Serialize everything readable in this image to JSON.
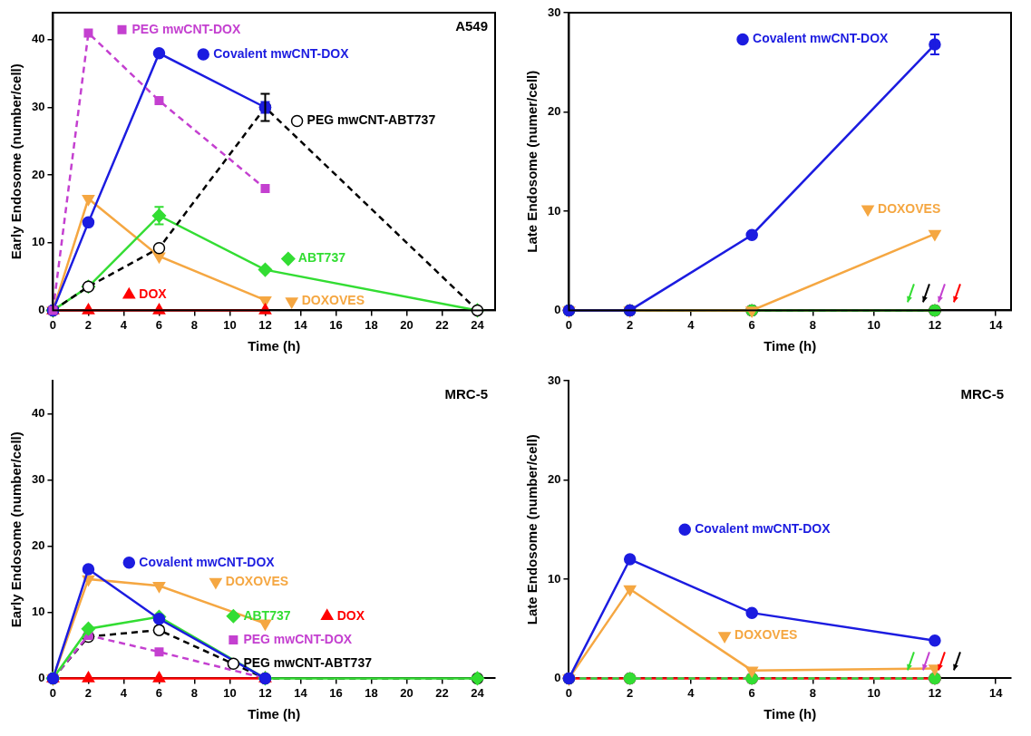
{
  "chart_data": [
    {
      "type": "line",
      "annotations": [
        "A549"
      ],
      "x_label": "Time (h)",
      "y_label": "Early Endosome (number/cell)",
      "xlim": [
        0,
        25
      ],
      "xticks": [
        0,
        2,
        4,
        6,
        8,
        10,
        12,
        14,
        16,
        18,
        20,
        22,
        24
      ],
      "ylim": [
        0,
        44
      ],
      "yticks": [
        0,
        10,
        20,
        30,
        40
      ],
      "grid": false,
      "series": [
        {
          "name": "PEG mwCNT-DOX",
          "color": "#c440d0",
          "marker": "square",
          "line_style": "dashed",
          "x": [
            0,
            2,
            6,
            12
          ],
          "values": [
            0,
            41,
            31,
            18
          ]
        },
        {
          "name": "Covalent mwCNT-DOX",
          "color": "#1c1ce0",
          "marker": "circle",
          "line_style": "solid",
          "x": [
            0,
            2,
            6,
            12
          ],
          "values": [
            0,
            13,
            38,
            30
          ],
          "errors": [
            null,
            null,
            null,
            0.8
          ]
        },
        {
          "name": "PEG mwCNT-ABT737",
          "color": "#000000",
          "marker": "open_circle",
          "line_style": "dashed",
          "x": [
            0,
            2,
            6,
            12,
            24
          ],
          "values": [
            0,
            3.5,
            9.2,
            30,
            0
          ],
          "errors": [
            null,
            null,
            null,
            2,
            null
          ]
        },
        {
          "name": "ABT737",
          "color": "#33dd33",
          "marker": "diamond",
          "line_style": "solid",
          "x": [
            0,
            2,
            6,
            12,
            24
          ],
          "values": [
            0,
            3.5,
            14,
            6,
            0
          ],
          "errors": [
            null,
            null,
            1.3,
            null,
            null
          ]
        },
        {
          "name": "DOX",
          "color": "#ff0000",
          "marker": "triangle",
          "line_style": "solid",
          "x": [
            0,
            2,
            6,
            12
          ],
          "values": [
            0,
            0,
            0,
            0
          ]
        },
        {
          "name": "DOXOVES",
          "color": "#f5a742",
          "marker": "triangle_down",
          "line_style": "solid",
          "x": [
            0,
            2,
            6,
            12
          ],
          "values": [
            0,
            16.5,
            8,
            1.5
          ]
        }
      ]
    },
    {
      "type": "line",
      "x_label": "Time (h)",
      "y_label": "Late Endosome (numer/cell)",
      "xlim": [
        0,
        14.5
      ],
      "xticks": [
        0,
        2,
        4,
        6,
        8,
        10,
        12,
        14
      ],
      "ylim": [
        0,
        30
      ],
      "yticks": [
        0,
        10,
        20,
        30
      ],
      "grid": false,
      "series": [
        {
          "name": "Covalent mwCNT-DOX",
          "color": "#1c1ce0",
          "marker": "circle",
          "line_style": "solid",
          "x": [
            0,
            2,
            6,
            12
          ],
          "values": [
            0,
            0,
            7.6,
            26.8
          ],
          "errors": [
            null,
            null,
            null,
            1
          ]
        },
        {
          "name": "DOXOVES",
          "color": "#f5a742",
          "marker": "triangle_down",
          "line_style": "solid",
          "x": [
            0,
            2,
            6,
            12
          ],
          "values": [
            0,
            0,
            0,
            7.7
          ]
        },
        {
          "name": "ABT737",
          "color": "#33dd33",
          "marker": "circle",
          "line_style": "solid",
          "x": [
            0,
            2,
            6,
            12
          ],
          "values": [
            0,
            0,
            0,
            0
          ]
        },
        {
          "name": "PEG mwCNT-ABT737",
          "color": "#000000",
          "marker": "circle",
          "line_style": "dashed",
          "x": [
            0,
            2,
            6,
            12
          ],
          "values": [
            0,
            0,
            0,
            0
          ]
        },
        {
          "name": "PEG mwCNT-DOX",
          "color": "#c440d0",
          "marker": "circle",
          "line_style": "dashed",
          "x": [
            0,
            2,
            6,
            12
          ],
          "values": [
            0,
            0,
            0,
            0
          ]
        },
        {
          "name": "DOX",
          "color": "#ff0000",
          "marker": "circle",
          "line_style": "solid",
          "x": [
            0,
            2,
            6,
            12
          ],
          "values": [
            0,
            0,
            0,
            0
          ]
        }
      ]
    },
    {
      "type": "line",
      "annotations": [
        "MRC-5"
      ],
      "x_label": "Time (h)",
      "y_label": "Early Endosome (number/cell)",
      "xlim": [
        0,
        25
      ],
      "xticks": [
        0,
        2,
        4,
        6,
        8,
        10,
        12,
        14,
        16,
        18,
        20,
        22,
        24
      ],
      "ylim": [
        0,
        45
      ],
      "yticks": [
        0,
        10,
        20,
        30,
        40
      ],
      "grid": false,
      "series": [
        {
          "name": "Covalent mwCNT-DOX",
          "color": "#1c1ce0",
          "marker": "circle",
          "line_style": "solid",
          "x": [
            0,
            2,
            6,
            12
          ],
          "values": [
            0,
            16.5,
            9,
            0
          ]
        },
        {
          "name": "DOXOVES",
          "color": "#f5a742",
          "marker": "triangle_down",
          "line_style": "solid",
          "x": [
            0,
            2,
            6,
            12
          ],
          "values": [
            0,
            15,
            14,
            8.3
          ]
        },
        {
          "name": "ABT737",
          "color": "#33dd33",
          "marker": "diamond",
          "line_style": "solid",
          "x": [
            0,
            2,
            6,
            12,
            24
          ],
          "values": [
            0,
            7.5,
            9.3,
            0,
            0
          ]
        },
        {
          "name": "DOX",
          "color": "#ff0000",
          "marker": "triangle",
          "line_style": "solid",
          "x": [
            0,
            2,
            6,
            12
          ],
          "values": [
            0,
            0,
            0,
            0
          ]
        },
        {
          "name": "PEG mwCNT-DOX",
          "color": "#c440d0",
          "marker": "square",
          "line_style": "dashed",
          "x": [
            0,
            2,
            6,
            12
          ],
          "values": [
            0,
            6.5,
            4,
            0
          ]
        },
        {
          "name": "PEG mwCNT-ABT737",
          "color": "#000000",
          "marker": "open_circle",
          "line_style": "dashed",
          "x": [
            0,
            2,
            6,
            12,
            24
          ],
          "values": [
            0,
            6.3,
            7.3,
            0,
            0
          ]
        }
      ]
    },
    {
      "type": "line",
      "annotations": [
        "MRC-5"
      ],
      "x_label": "Time (h)",
      "y_label": "Late Endosome (number/cell)",
      "xlim": [
        0,
        14.5
      ],
      "xticks": [
        0,
        2,
        4,
        6,
        8,
        10,
        12,
        14
      ],
      "ylim": [
        0,
        30
      ],
      "yticks": [
        0,
        10,
        20,
        30
      ],
      "grid": false,
      "series": [
        {
          "name": "Covalent mwCNT-DOX",
          "color": "#1c1ce0",
          "marker": "circle",
          "line_style": "solid",
          "x": [
            0,
            2,
            6,
            12
          ],
          "values": [
            0,
            12,
            6.6,
            3.8
          ]
        },
        {
          "name": "DOXOVES",
          "color": "#f5a742",
          "marker": "triangle_down",
          "line_style": "solid",
          "x": [
            0,
            2,
            6,
            12
          ],
          "values": [
            0,
            9,
            0.8,
            1
          ]
        },
        {
          "name": "ABT737",
          "color": "#33dd33",
          "marker": "circle",
          "line_style": "dashed",
          "x": [
            0,
            2,
            6,
            12
          ],
          "values": [
            0,
            0,
            0,
            0
          ]
        },
        {
          "name": "PEG mwCNT-DOX",
          "color": "#c440d0",
          "marker": "circle",
          "line_style": "dashed",
          "x": [
            0,
            2,
            6,
            12
          ],
          "values": [
            0,
            0,
            0,
            0
          ]
        },
        {
          "name": "DOX",
          "color": "#ff0000",
          "marker": "circle",
          "line_style": "solid",
          "x": [
            0,
            2,
            6,
            12
          ],
          "values": [
            0,
            0,
            0,
            0
          ]
        },
        {
          "name": "PEG mwCNT-ABT737",
          "color": "#000000",
          "marker": "circle",
          "line_style": "dashed",
          "x": [
            0,
            2,
            6,
            12
          ],
          "values": [
            0,
            0,
            0,
            0
          ]
        }
      ]
    }
  ]
}
